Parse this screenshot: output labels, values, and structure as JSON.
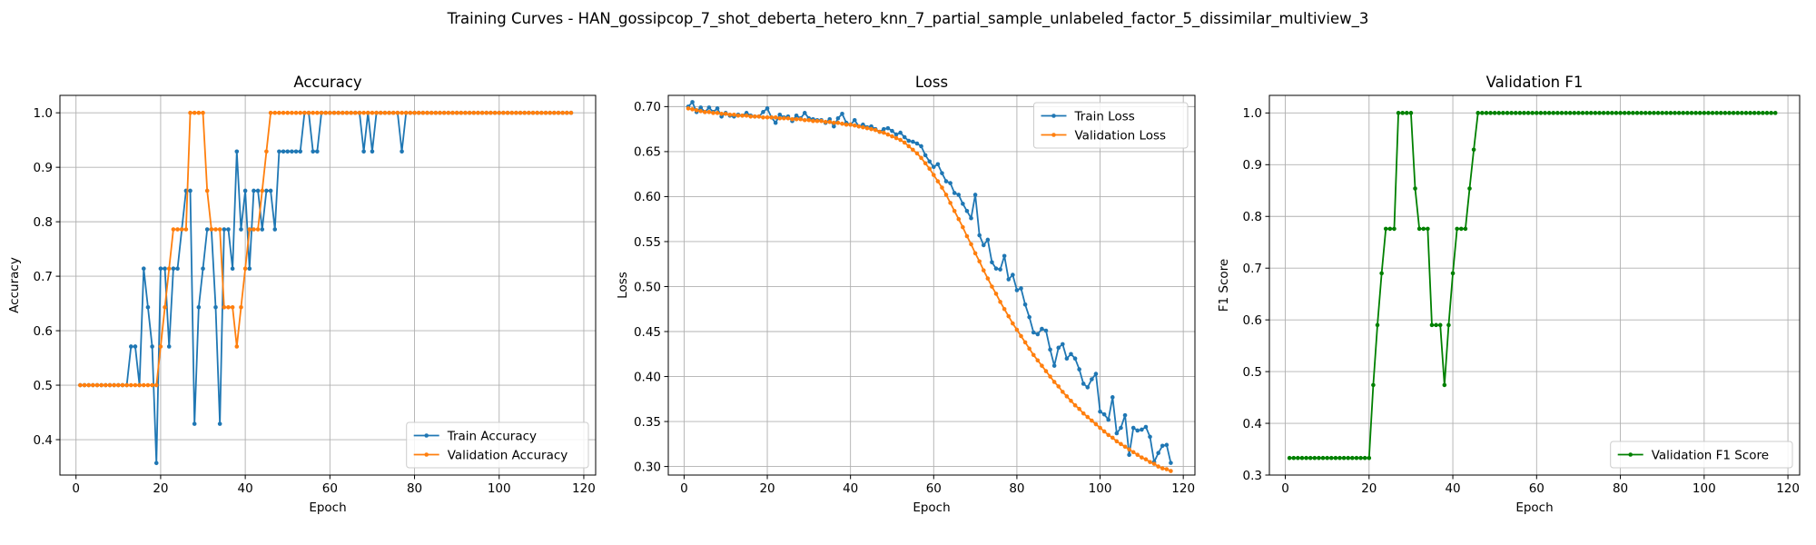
{
  "figure": {
    "suptitle": "Training Curves - HAN_gossipcop_7_shot_deberta_hetero_knn_7_partial_sample_unlabeled_factor_5_dissimilar_multiview_3"
  },
  "colors": {
    "blue": "#1f77b4",
    "orange": "#ff7f0e",
    "green": "#008000",
    "grid": "#b0b0b0"
  },
  "chart_data": [
    {
      "type": "line",
      "title": "Accuracy",
      "xlabel": "Epoch",
      "ylabel": "Accuracy",
      "xlim": [
        -3.8,
        122.8
      ],
      "ylim": [
        0.335,
        1.032
      ],
      "xticks": [
        0,
        20,
        40,
        60,
        80,
        100,
        120
      ],
      "yticks": [
        0.4,
        0.5,
        0.6,
        0.7,
        0.8,
        0.9,
        1.0
      ],
      "ytick_decimals": 1,
      "grid": true,
      "legend": "lower right",
      "series": [
        {
          "name": "Train Accuracy",
          "color": "#1f77b4",
          "x_start": 1,
          "values": [
            0.5,
            0.5,
            0.5,
            0.5,
            0.5,
            0.5,
            0.5,
            0.5,
            0.5,
            0.5,
            0.5,
            0.5,
            0.571,
            0.571,
            0.5,
            0.714,
            0.643,
            0.571,
            0.357,
            0.714,
            0.714,
            0.571,
            0.714,
            0.714,
            0.786,
            0.857,
            0.857,
            0.429,
            0.643,
            0.714,
            0.786,
            0.786,
            0.643,
            0.429,
            0.786,
            0.786,
            0.714,
            0.929,
            0.786,
            0.857,
            0.714,
            0.857,
            0.857,
            0.786,
            0.857,
            0.857,
            0.786,
            0.929,
            0.929,
            0.929,
            0.929,
            0.929,
            0.929,
            1.0,
            1.0,
            0.929,
            0.929,
            1.0,
            1.0,
            1.0,
            1.0,
            1.0,
            1.0,
            1.0,
            1.0,
            1.0,
            1.0,
            0.929,
            1.0,
            0.929,
            1.0,
            1.0,
            1.0,
            1.0,
            1.0,
            1.0,
            0.929,
            1.0,
            1.0,
            1.0,
            1.0,
            1.0,
            1.0,
            1.0,
            1.0,
            1.0,
            1.0,
            1.0,
            1.0,
            1.0,
            1.0,
            1.0,
            1.0,
            1.0,
            1.0,
            1.0,
            1.0,
            1.0,
            1.0,
            1.0,
            1.0,
            1.0,
            1.0,
            1.0,
            1.0,
            1.0,
            1.0,
            1.0,
            1.0,
            1.0,
            1.0,
            1.0,
            1.0,
            1.0,
            1.0,
            1.0,
            1.0
          ]
        },
        {
          "name": "Validation Accuracy",
          "color": "#ff7f0e",
          "x_start": 1,
          "values": [
            0.5,
            0.5,
            0.5,
            0.5,
            0.5,
            0.5,
            0.5,
            0.5,
            0.5,
            0.5,
            0.5,
            0.5,
            0.5,
            0.5,
            0.5,
            0.5,
            0.5,
            0.5,
            0.5,
            0.571,
            0.643,
            0.714,
            0.786,
            0.786,
            0.786,
            0.786,
            1.0,
            1.0,
            1.0,
            1.0,
            0.857,
            0.786,
            0.786,
            0.786,
            0.643,
            0.643,
            0.643,
            0.571,
            0.643,
            0.714,
            0.786,
            0.786,
            0.786,
            0.857,
            0.929,
            1.0,
            1.0,
            1.0,
            1.0,
            1.0,
            1.0,
            1.0,
            1.0,
            1.0,
            1.0,
            1.0,
            1.0,
            1.0,
            1.0,
            1.0,
            1.0,
            1.0,
            1.0,
            1.0,
            1.0,
            1.0,
            1.0,
            1.0,
            1.0,
            1.0,
            1.0,
            1.0,
            1.0,
            1.0,
            1.0,
            1.0,
            1.0,
            1.0,
            1.0,
            1.0,
            1.0,
            1.0,
            1.0,
            1.0,
            1.0,
            1.0,
            1.0,
            1.0,
            1.0,
            1.0,
            1.0,
            1.0,
            1.0,
            1.0,
            1.0,
            1.0,
            1.0,
            1.0,
            1.0,
            1.0,
            1.0,
            1.0,
            1.0,
            1.0,
            1.0,
            1.0,
            1.0,
            1.0,
            1.0,
            1.0,
            1.0,
            1.0,
            1.0,
            1.0,
            1.0,
            1.0,
            1.0
          ]
        }
      ]
    },
    {
      "type": "line",
      "title": "Loss",
      "xlabel": "Epoch",
      "ylabel": "Loss",
      "xlim": [
        -3.8,
        122.8
      ],
      "ylim": [
        0.2905,
        0.7125
      ],
      "xticks": [
        0,
        20,
        40,
        60,
        80,
        100,
        120
      ],
      "yticks": [
        0.3,
        0.35,
        0.4,
        0.45,
        0.5,
        0.55,
        0.6,
        0.65,
        0.7
      ],
      "ytick_decimals": 2,
      "grid": true,
      "legend": "upper right",
      "series": [
        {
          "name": "Train Loss",
          "color": "#1f77b4",
          "x_start": 1,
          "values": [
            0.7,
            0.705,
            0.694,
            0.699,
            0.694,
            0.699,
            0.694,
            0.698,
            0.689,
            0.693,
            0.69,
            0.689,
            0.691,
            0.69,
            0.693,
            0.69,
            0.689,
            0.689,
            0.694,
            0.698,
            0.688,
            0.682,
            0.691,
            0.688,
            0.689,
            0.684,
            0.69,
            0.687,
            0.693,
            0.687,
            0.686,
            0.685,
            0.685,
            0.682,
            0.686,
            0.678,
            0.687,
            0.692,
            0.682,
            0.68,
            0.685,
            0.678,
            0.68,
            0.677,
            0.678,
            0.675,
            0.672,
            0.675,
            0.676,
            0.673,
            0.669,
            0.671,
            0.666,
            0.662,
            0.661,
            0.659,
            0.656,
            0.646,
            0.639,
            0.633,
            0.636,
            0.626,
            0.617,
            0.615,
            0.604,
            0.602,
            0.592,
            0.584,
            0.576,
            0.602,
            0.557,
            0.546,
            0.552,
            0.527,
            0.52,
            0.519,
            0.534,
            0.508,
            0.513,
            0.496,
            0.498,
            0.48,
            0.466,
            0.449,
            0.447,
            0.453,
            0.451,
            0.43,
            0.412,
            0.432,
            0.436,
            0.42,
            0.425,
            0.42,
            0.408,
            0.392,
            0.388,
            0.397,
            0.403,
            0.361,
            0.358,
            0.352,
            0.377,
            0.337,
            0.343,
            0.357,
            0.313,
            0.343,
            0.34,
            0.341,
            0.344,
            0.333,
            0.305,
            0.315,
            0.323,
            0.324,
            0.304
          ]
        },
        {
          "name": "Validation Loss",
          "color": "#ff7f0e",
          "x_start": 1,
          "values": [
            0.698,
            0.697,
            0.696,
            0.695,
            0.694,
            0.694,
            0.693,
            0.693,
            0.692,
            0.692,
            0.691,
            0.691,
            0.69,
            0.69,
            0.69,
            0.689,
            0.689,
            0.689,
            0.688,
            0.688,
            0.688,
            0.688,
            0.687,
            0.687,
            0.687,
            0.686,
            0.686,
            0.686,
            0.685,
            0.685,
            0.684,
            0.684,
            0.684,
            0.683,
            0.683,
            0.682,
            0.682,
            0.681,
            0.68,
            0.68,
            0.679,
            0.678,
            0.677,
            0.676,
            0.675,
            0.674,
            0.672,
            0.671,
            0.669,
            0.667,
            0.665,
            0.663,
            0.66,
            0.656,
            0.652,
            0.648,
            0.643,
            0.637,
            0.631,
            0.624,
            0.617,
            0.61,
            0.602,
            0.593,
            0.584,
            0.575,
            0.566,
            0.556,
            0.547,
            0.537,
            0.528,
            0.518,
            0.509,
            0.5,
            0.492,
            0.483,
            0.475,
            0.467,
            0.459,
            0.452,
            0.445,
            0.438,
            0.431,
            0.424,
            0.418,
            0.412,
            0.406,
            0.4,
            0.394,
            0.389,
            0.383,
            0.378,
            0.373,
            0.368,
            0.364,
            0.359,
            0.355,
            0.351,
            0.347,
            0.343,
            0.339,
            0.335,
            0.332,
            0.328,
            0.325,
            0.322,
            0.319,
            0.316,
            0.313,
            0.31,
            0.308,
            0.305,
            0.303,
            0.3,
            0.298,
            0.297,
            0.295
          ]
        }
      ]
    },
    {
      "type": "line",
      "title": "Validation F1",
      "xlabel": "Epoch",
      "ylabel": "F1 Score",
      "xlim": [
        -3.8,
        122.8
      ],
      "ylim": [
        0.3,
        1.034
      ],
      "xticks": [
        0,
        20,
        40,
        60,
        80,
        100,
        120
      ],
      "yticks": [
        0.3,
        0.4,
        0.5,
        0.6,
        0.7,
        0.8,
        0.9,
        1.0
      ],
      "ytick_decimals": 1,
      "grid": true,
      "legend": "lower right",
      "series": [
        {
          "name": "Validation F1 Score",
          "color": "#008000",
          "x_start": 1,
          "values": [
            0.333,
            0.333,
            0.333,
            0.333,
            0.333,
            0.333,
            0.333,
            0.333,
            0.333,
            0.333,
            0.333,
            0.333,
            0.333,
            0.333,
            0.333,
            0.333,
            0.333,
            0.333,
            0.333,
            0.333,
            0.474,
            0.59,
            0.69,
            0.776,
            0.776,
            0.776,
            1.0,
            1.0,
            1.0,
            1.0,
            0.854,
            0.776,
            0.776,
            0.776,
            0.59,
            0.59,
            0.59,
            0.474,
            0.59,
            0.69,
            0.776,
            0.776,
            0.776,
            0.854,
            0.929,
            1.0,
            1.0,
            1.0,
            1.0,
            1.0,
            1.0,
            1.0,
            1.0,
            1.0,
            1.0,
            1.0,
            1.0,
            1.0,
            1.0,
            1.0,
            1.0,
            1.0,
            1.0,
            1.0,
            1.0,
            1.0,
            1.0,
            1.0,
            1.0,
            1.0,
            1.0,
            1.0,
            1.0,
            1.0,
            1.0,
            1.0,
            1.0,
            1.0,
            1.0,
            1.0,
            1.0,
            1.0,
            1.0,
            1.0,
            1.0,
            1.0,
            1.0,
            1.0,
            1.0,
            1.0,
            1.0,
            1.0,
            1.0,
            1.0,
            1.0,
            1.0,
            1.0,
            1.0,
            1.0,
            1.0,
            1.0,
            1.0,
            1.0,
            1.0,
            1.0,
            1.0,
            1.0,
            1.0,
            1.0,
            1.0,
            1.0,
            1.0,
            1.0,
            1.0,
            1.0,
            1.0,
            1.0
          ]
        }
      ]
    }
  ]
}
